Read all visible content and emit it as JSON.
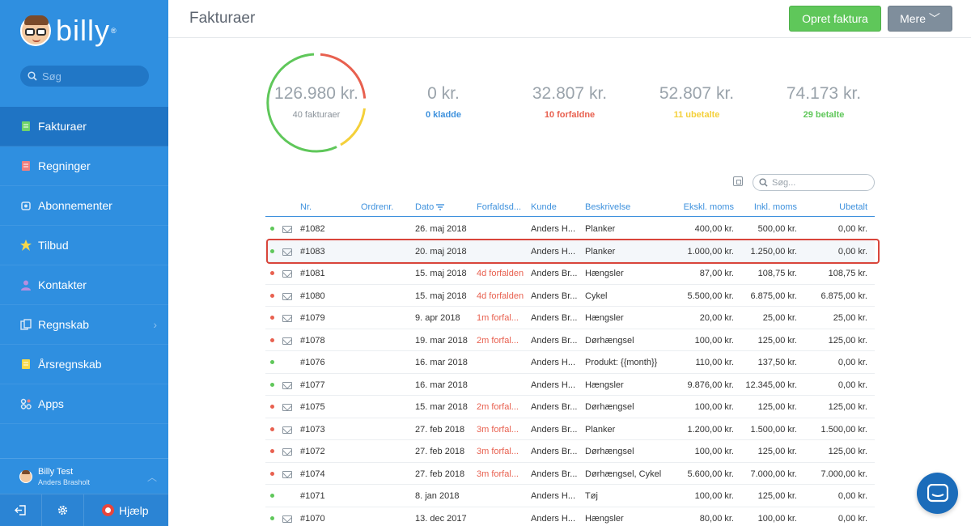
{
  "app": {
    "logo_text": "billy",
    "logo_mark": "®"
  },
  "sidebar": {
    "search_placeholder": "Søg",
    "items": [
      {
        "label": "Fakturaer",
        "icon": "invoice-icon",
        "active": true
      },
      {
        "label": "Regninger",
        "icon": "bill-icon"
      },
      {
        "label": "Abonnementer",
        "icon": "subscription-icon"
      },
      {
        "label": "Tilbud",
        "icon": "quote-icon"
      },
      {
        "label": "Kontakter",
        "icon": "contact-icon"
      },
      {
        "label": "Regnskab",
        "icon": "accounting-icon",
        "has_submenu": true
      },
      {
        "label": "Årsregnskab",
        "icon": "annual-report-icon"
      },
      {
        "label": "Apps",
        "icon": "apps-icon"
      }
    ],
    "user": {
      "name": "Billy Test",
      "org": "Anders Brasholt"
    },
    "footer": {
      "help_label": "Hjælp"
    }
  },
  "header": {
    "title": "Fakturaer",
    "create_label": "Opret faktura",
    "more_label": "Mere"
  },
  "summary": {
    "total": {
      "amount": "126.980 kr.",
      "label": "40 fakturaer"
    },
    "stats": [
      {
        "amount": "0 kr.",
        "label": "0 kladde",
        "color": "#3e91dd"
      },
      {
        "amount": "32.807 kr.",
        "label": "10 forfaldne",
        "color": "#e8604f"
      },
      {
        "amount": "52.807 kr.",
        "label": "11 ubetalte",
        "color": "#f4d03a"
      },
      {
        "amount": "74.173 kr.",
        "label": "29 betalte",
        "color": "#5fc75a"
      }
    ],
    "donut_colors": {
      "paid": "#5fc75a",
      "overdue": "#e8604f",
      "unpaid": "#f4d03a"
    }
  },
  "table": {
    "search_placeholder": "Søg...",
    "columns": [
      "Nr.",
      "Ordrenr.",
      "Dato",
      "Forfaldsd...",
      "Kunde",
      "Beskrivelse",
      "Ekskl. moms",
      "Inkl. moms",
      "Ubetalt"
    ],
    "rows": [
      {
        "status": "paid",
        "mail": true,
        "nr": "#1082",
        "order": "",
        "date": "26. maj 2018",
        "due": "",
        "customer": "Anders H...",
        "desc": "Planker",
        "excl": "400,00 kr.",
        "incl": "500,00 kr.",
        "unpaid": "0,00 kr."
      },
      {
        "status": "paid",
        "mail": true,
        "nr": "#1083",
        "order": "",
        "date": "20. maj 2018",
        "due": "",
        "customer": "Anders H...",
        "desc": "Planker",
        "excl": "1.000,00 kr.",
        "incl": "1.250,00 kr.",
        "unpaid": "0,00 kr.",
        "selected": true
      },
      {
        "status": "overdue",
        "mail": true,
        "nr": "#1081",
        "order": "",
        "date": "15. maj 2018",
        "due": "4d forfalden",
        "customer": "Anders Br...",
        "desc": "Hængsler",
        "excl": "87,00 kr.",
        "incl": "108,75 kr.",
        "unpaid": "108,75 kr."
      },
      {
        "status": "overdue",
        "mail": true,
        "nr": "#1080",
        "order": "",
        "date": "15. maj 2018",
        "due": "4d forfalden",
        "customer": "Anders Br...",
        "desc": "Cykel",
        "excl": "5.500,00 kr.",
        "incl": "6.875,00 kr.",
        "unpaid": "6.875,00 kr."
      },
      {
        "status": "overdue",
        "mail": true,
        "nr": "#1079",
        "order": "",
        "date": "9. apr 2018",
        "due": "1m forfal...",
        "customer": "Anders Br...",
        "desc": "Hængsler",
        "excl": "20,00 kr.",
        "incl": "25,00 kr.",
        "unpaid": "25,00 kr."
      },
      {
        "status": "overdue",
        "mail": true,
        "nr": "#1078",
        "order": "",
        "date": "19. mar 2018",
        "due": "2m forfal...",
        "customer": "Anders Br...",
        "desc": "Dørhængsel",
        "excl": "100,00 kr.",
        "incl": "125,00 kr.",
        "unpaid": "125,00 kr."
      },
      {
        "status": "paid",
        "mail": false,
        "nr": "#1076",
        "order": "",
        "date": "16. mar 2018",
        "due": "",
        "customer": "Anders H...",
        "desc": "Produkt: {{month}}",
        "excl": "110,00 kr.",
        "incl": "137,50 kr.",
        "unpaid": "0,00 kr."
      },
      {
        "status": "paid",
        "mail": true,
        "nr": "#1077",
        "order": "",
        "date": "16. mar 2018",
        "due": "",
        "customer": "Anders H...",
        "desc": "Hængsler",
        "excl": "9.876,00 kr.",
        "incl": "12.345,00 kr.",
        "unpaid": "0,00 kr."
      },
      {
        "status": "overdue",
        "mail": true,
        "nr": "#1075",
        "order": "",
        "date": "15. mar 2018",
        "due": "2m forfal...",
        "customer": "Anders Br...",
        "desc": "Dørhængsel",
        "excl": "100,00 kr.",
        "incl": "125,00 kr.",
        "unpaid": "125,00 kr."
      },
      {
        "status": "overdue",
        "mail": true,
        "nr": "#1073",
        "order": "",
        "date": "27. feb 2018",
        "due": "3m forfal...",
        "customer": "Anders Br...",
        "desc": "Planker",
        "excl": "1.200,00 kr.",
        "incl": "1.500,00 kr.",
        "unpaid": "1.500,00 kr."
      },
      {
        "status": "overdue",
        "mail": true,
        "nr": "#1072",
        "order": "",
        "date": "27. feb 2018",
        "due": "3m forfal...",
        "customer": "Anders Br...",
        "desc": "Dørhængsel",
        "excl": "100,00 kr.",
        "incl": "125,00 kr.",
        "unpaid": "125,00 kr."
      },
      {
        "status": "overdue",
        "mail": true,
        "nr": "#1074",
        "order": "",
        "date": "27. feb 2018",
        "due": "3m forfal...",
        "customer": "Anders Br...",
        "desc": "Dørhængsel, Cykel",
        "excl": "5.600,00 kr.",
        "incl": "7.000,00 kr.",
        "unpaid": "7.000,00 kr."
      },
      {
        "status": "paid",
        "mail": false,
        "nr": "#1071",
        "order": "",
        "date": "8. jan 2018",
        "due": "",
        "customer": "Anders H...",
        "desc": "Tøj",
        "excl": "100,00 kr.",
        "incl": "125,00 kr.",
        "unpaid": "0,00 kr."
      },
      {
        "status": "paid",
        "mail": true,
        "nr": "#1070",
        "order": "",
        "date": "13. dec 2017",
        "due": "",
        "customer": "Anders H...",
        "desc": "Hængsler",
        "excl": "80,00 kr.",
        "incl": "100,00 kr.",
        "unpaid": "0,00 kr."
      }
    ]
  },
  "status_colors": {
    "paid": "#5fc75a",
    "overdue": "#e8604f"
  }
}
